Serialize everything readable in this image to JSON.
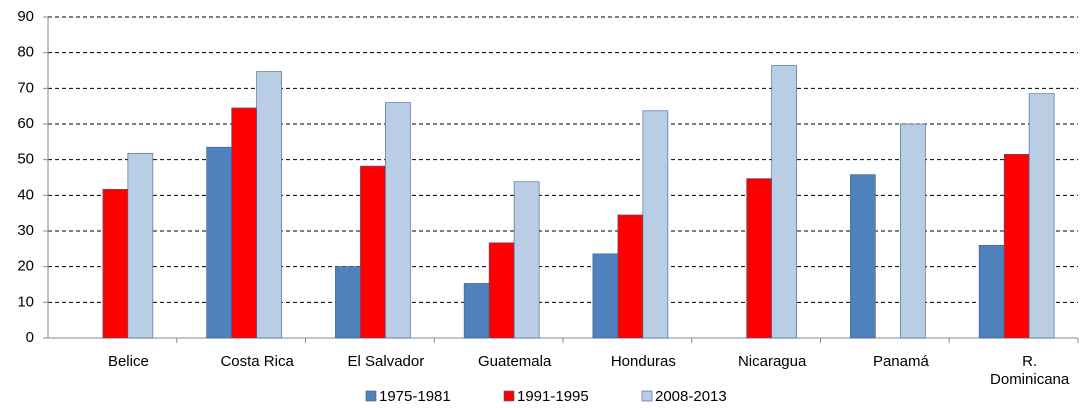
{
  "chart_data": {
    "type": "bar",
    "categories": [
      "Belice",
      "Costa Rica",
      "El Salvador",
      "Guatemala",
      "Honduras",
      "Nicaragua",
      "Panamá",
      "R. Dominicana"
    ],
    "series": [
      {
        "name": "1975-1981",
        "color": "#4f81bd",
        "values": [
          null,
          53.5,
          20,
          15.3,
          23.6,
          null,
          45.8,
          26
        ]
      },
      {
        "name": "1991-1995",
        "color": "#ff0000",
        "values": [
          41.7,
          64.5,
          48.2,
          26.7,
          34.5,
          44.7,
          null,
          51.5
        ]
      },
      {
        "name": "2008-2013",
        "color": "#b9cde5",
        "values": [
          51.8,
          74.7,
          66,
          43.8,
          63.7,
          76.4,
          60,
          68.5
        ]
      }
    ],
    "ylim": [
      0,
      90
    ],
    "yticks": [
      0,
      10,
      20,
      30,
      40,
      50,
      60,
      70,
      80,
      90
    ],
    "grid": true,
    "legend": "bottom"
  }
}
